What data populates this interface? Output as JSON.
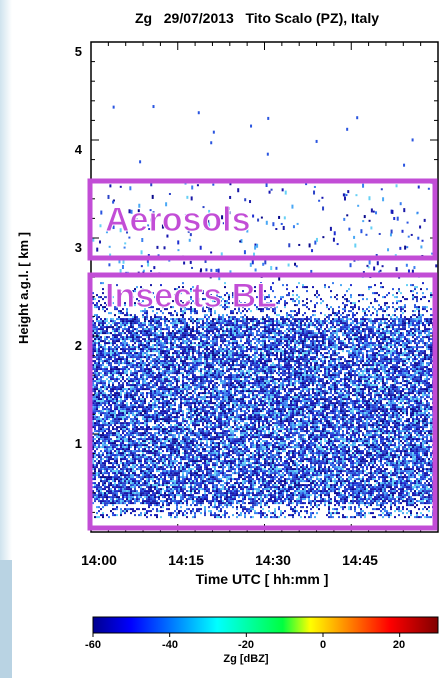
{
  "chart_data": {
    "type": "heatmap",
    "title": "Zg   29/07/2013   Tito Scalo (PZ), Italy",
    "xlabel": "Time UTC [ hh:mm ]",
    "ylabel": "Height a.g.l. [ km ]",
    "x_ticks": [
      "14:00",
      "14:15",
      "14:30",
      "14:45"
    ],
    "y_ticks": [
      "1",
      "2",
      "3",
      "4",
      "5"
    ],
    "x_range_minutes": [
      0,
      60
    ],
    "y_range_km": [
      0,
      5
    ],
    "colorbar": {
      "label": "Zg [dBZ]",
      "range": [
        -60,
        30
      ],
      "ticks": [
        "-60",
        "-40",
        "-20",
        "0",
        "20"
      ]
    },
    "annotations": [
      {
        "label": "Aerosols",
        "height_range_km": [
          2.8,
          3.6
        ]
      },
      {
        "label": "Insects BL",
        "height_range_km": [
          0.1,
          2.65
        ]
      }
    ],
    "colors": {
      "annotation": "#c24dd6",
      "echo_low": "#1a1aa8",
      "echo_high": "#5fd3f0"
    }
  }
}
